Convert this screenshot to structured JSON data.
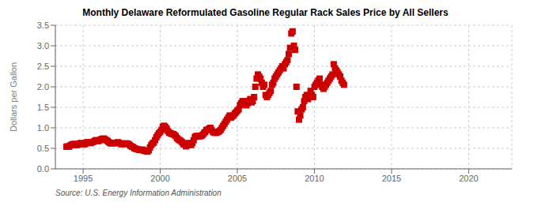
{
  "chart_data": {
    "type": "scatter",
    "title": "Monthly Delaware Reformulated Gasoline Regular Rack Sales Price by All Sellers",
    "ylabel": "Dollars per Gallon",
    "annotations": [
      "Source: U.S. Energy Information Administration"
    ],
    "color": "#cc0000",
    "marker": "square",
    "grid": true,
    "xlim": [
      1993.2,
      2022.8
    ],
    "ylim": [
      0.0,
      3.5
    ],
    "xticks": [
      1995,
      2000,
      2005,
      2010,
      2015,
      2020
    ],
    "yticks": [
      {
        "value": 0.0,
        "label": "0.0"
      },
      0.5,
      {
        "value": 1.0,
        "label": "1.0"
      },
      1.5,
      {
        "value": 2.0,
        "label": "2.0"
      },
      2.5,
      {
        "value": 3.0,
        "label": "3.0"
      },
      3.5
    ],
    "x": [
      1993.917,
      1994.0,
      1994.083,
      1994.167,
      1994.25,
      1994.333,
      1994.417,
      1994.5,
      1994.583,
      1994.667,
      1994.75,
      1994.833,
      1994.917,
      1995.0,
      1995.083,
      1995.167,
      1995.25,
      1995.333,
      1995.417,
      1995.5,
      1995.583,
      1995.667,
      1995.75,
      1995.833,
      1995.917,
      1996.0,
      1996.083,
      1996.167,
      1996.25,
      1996.333,
      1996.417,
      1996.5,
      1996.583,
      1996.667,
      1996.75,
      1996.833,
      1996.917,
      1997.0,
      1997.083,
      1997.167,
      1997.25,
      1997.333,
      1997.417,
      1997.5,
      1997.583,
      1997.667,
      1997.75,
      1997.833,
      1997.917,
      1998.0,
      1998.083,
      1998.167,
      1998.25,
      1998.333,
      1998.417,
      1998.5,
      1998.583,
      1998.667,
      1998.75,
      1998.833,
      1998.917,
      1999.0,
      1999.083,
      1999.167,
      1999.25,
      1999.333,
      1999.417,
      1999.5,
      1999.583,
      1999.667,
      1999.75,
      1999.833,
      1999.917,
      2000.0,
      2000.083,
      2000.167,
      2000.25,
      2000.333,
      2000.417,
      2000.5,
      2000.583,
      2000.667,
      2000.75,
      2000.833,
      2000.917,
      2001.0,
      2001.083,
      2001.167,
      2001.25,
      2001.333,
      2001.417,
      2001.5,
      2001.583,
      2001.667,
      2001.75,
      2001.833,
      2001.917,
      2002.0,
      2002.083,
      2002.167,
      2002.25,
      2002.333,
      2002.417,
      2002.5,
      2002.583,
      2002.667,
      2002.75,
      2002.833,
      2002.917,
      2003.0,
      2003.083,
      2003.167,
      2003.25,
      2003.333,
      2003.417,
      2003.5,
      2003.583,
      2003.667,
      2003.75,
      2003.833,
      2003.917,
      2004.0,
      2004.083,
      2004.167,
      2004.25,
      2004.333,
      2004.417,
      2004.5,
      2004.583,
      2004.667,
      2004.75,
      2004.833,
      2004.917,
      2005.0,
      2005.083,
      2005.167,
      2005.25,
      2005.333,
      2005.417,
      2005.5,
      2005.583,
      2005.667,
      2005.75,
      2005.833,
      2005.917,
      2006.0,
      2006.083,
      2006.167,
      2006.25,
      2006.333,
      2006.417,
      2006.5,
      2006.583,
      2006.667,
      2006.75,
      2006.833,
      2006.917,
      2007.0,
      2007.083,
      2007.167,
      2007.25,
      2007.333,
      2007.417,
      2007.5,
      2007.583,
      2007.667,
      2007.75,
      2007.833,
      2007.917,
      2008.0,
      2008.083,
      2008.167,
      2008.25,
      2008.333,
      2008.417,
      2008.5,
      2008.583,
      2008.667,
      2008.75,
      2008.833,
      2008.917,
      2009.0,
      2009.083,
      2009.167,
      2009.25,
      2009.333,
      2009.417,
      2009.5,
      2009.583,
      2009.667,
      2009.75,
      2009.833,
      2009.917,
      2010.0,
      2010.083,
      2010.167,
      2010.25,
      2010.333,
      2010.417,
      2010.5,
      2010.583,
      2010.667,
      2010.75,
      2010.833,
      2010.917,
      2011.0,
      2011.083,
      2011.167,
      2011.25,
      2011.333,
      2011.417,
      2011.5,
      2011.583,
      2011.667,
      2011.75,
      2011.833,
      2011.917
    ],
    "values": [
      0.54,
      0.55,
      0.54,
      0.57,
      0.59,
      0.6,
      0.61,
      0.58,
      0.58,
      0.6,
      0.61,
      0.63,
      0.62,
      0.6,
      0.6,
      0.62,
      0.65,
      0.64,
      0.65,
      0.63,
      0.65,
      0.66,
      0.68,
      0.7,
      0.68,
      0.68,
      0.7,
      0.72,
      0.73,
      0.74,
      0.72,
      0.7,
      0.68,
      0.65,
      0.63,
      0.62,
      0.63,
      0.63,
      0.63,
      0.63,
      0.65,
      0.63,
      0.62,
      0.6,
      0.61,
      0.61,
      0.62,
      0.62,
      0.61,
      0.59,
      0.56,
      0.54,
      0.53,
      0.5,
      0.49,
      0.48,
      0.47,
      0.46,
      0.46,
      0.47,
      0.45,
      0.44,
      0.43,
      0.42,
      0.45,
      0.52,
      0.58,
      0.62,
      0.64,
      0.7,
      0.77,
      0.82,
      0.87,
      0.9,
      0.95,
      1.03,
      1.05,
      1.02,
      0.98,
      0.92,
      0.88,
      0.87,
      0.85,
      0.85,
      0.83,
      0.8,
      0.75,
      0.72,
      0.7,
      0.68,
      0.65,
      0.6,
      0.6,
      0.55,
      0.58,
      0.63,
      0.6,
      0.58,
      0.63,
      0.7,
      0.78,
      0.8,
      0.8,
      0.79,
      0.8,
      0.8,
      0.83,
      0.87,
      0.9,
      0.95,
      0.95,
      0.98,
      1.0,
      0.95,
      0.9,
      0.88,
      0.88,
      0.88,
      0.9,
      0.92,
      0.95,
      1.0,
      1.05,
      1.1,
      1.15,
      1.2,
      1.25,
      1.3,
      1.25,
      1.28,
      1.3,
      1.35,
      1.38,
      1.42,
      1.45,
      1.55,
      1.6,
      1.65,
      1.65,
      1.6,
      1.55,
      1.6,
      1.65,
      1.7,
      1.62,
      1.65,
      1.75,
      2.0,
      2.2,
      2.3,
      2.25,
      2.2,
      2.1,
      2.0,
      2.05,
      1.8,
      1.75,
      1.8,
      1.85,
      1.9,
      2.05,
      2.1,
      2.2,
      2.25,
      2.3,
      2.35,
      2.4,
      2.45,
      2.5,
      2.45,
      2.55,
      2.6,
      2.65,
      2.8,
      2.95,
      3.3,
      3.35,
      3.0,
      2.9,
      2.0,
      1.4,
      1.2,
      1.3,
      1.45,
      1.5,
      1.65,
      1.75,
      1.8,
      1.7,
      1.8,
      1.9,
      1.8,
      1.75,
      2.0,
      2.05,
      2.1,
      2.15,
      2.2,
      2.05,
      2.0,
      1.95,
      2.0,
      2.05,
      2.1,
      2.15,
      2.2,
      2.25,
      2.3,
      2.55,
      2.45,
      2.4,
      2.35,
      2.3,
      2.25,
      2.15,
      2.1,
      2.05
    ]
  }
}
